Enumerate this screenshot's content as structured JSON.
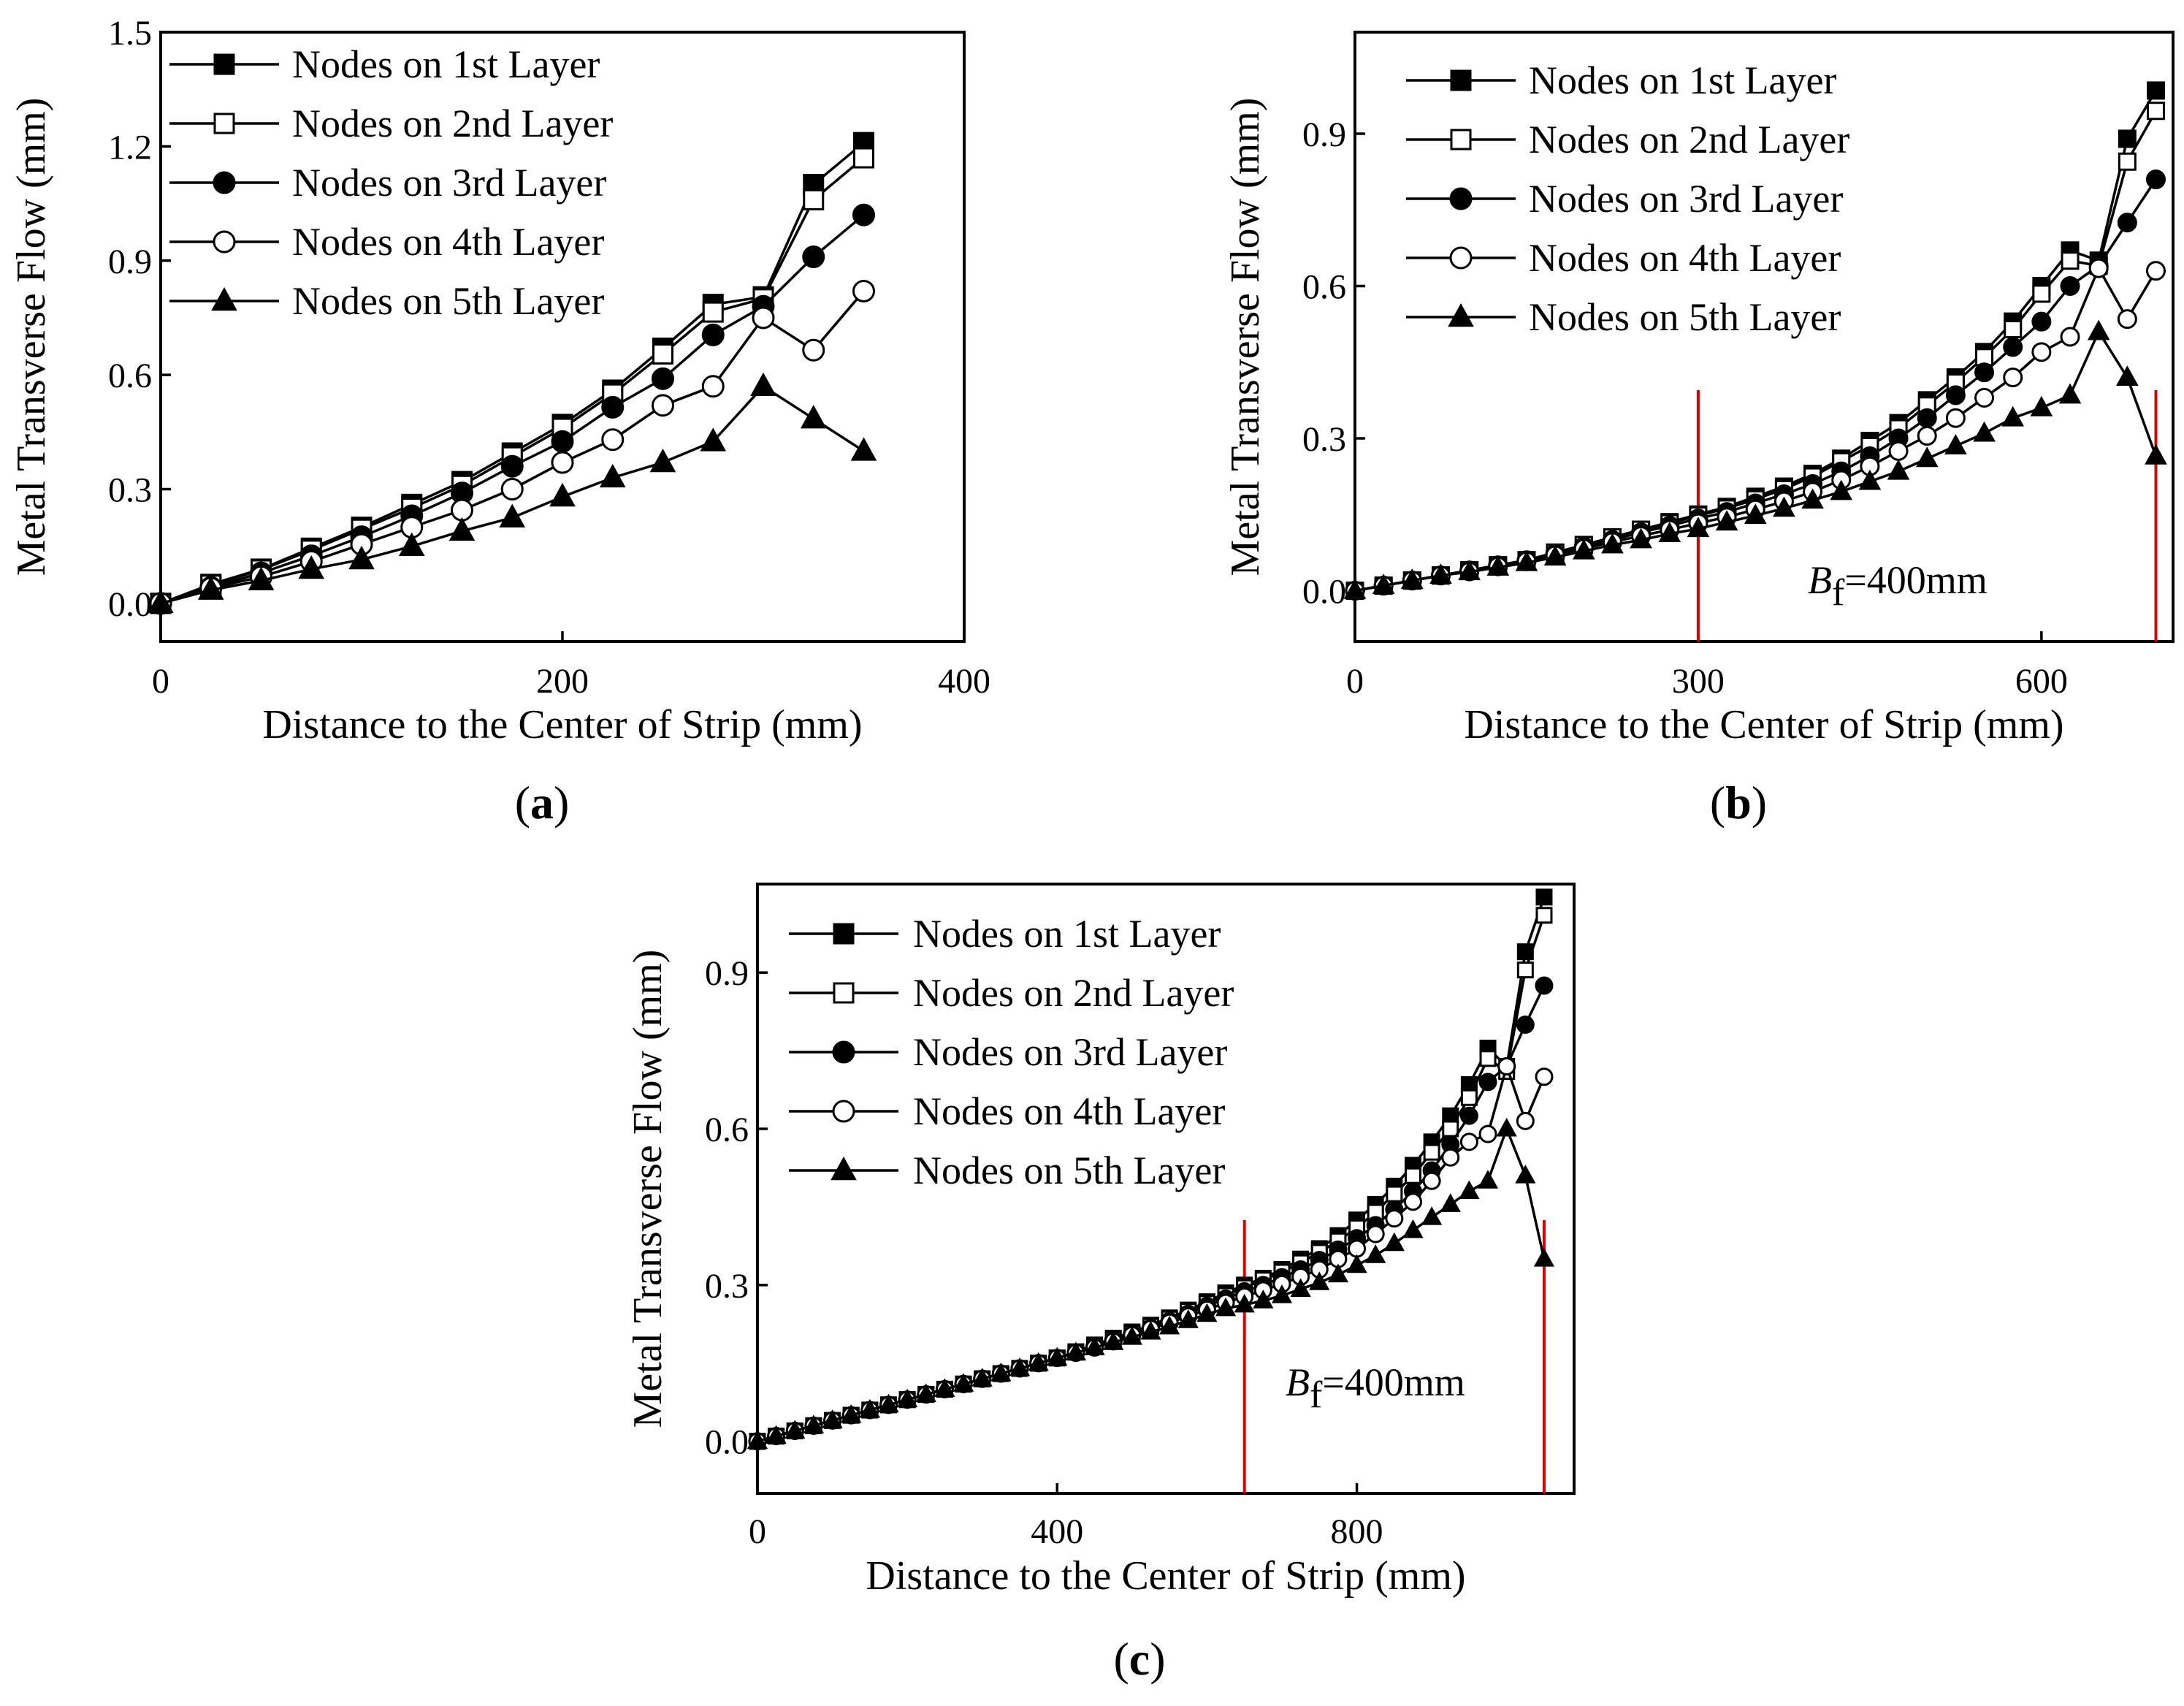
{
  "chart_data": [
    {
      "panel": "a",
      "type": "line",
      "xlabel": "Distance to the Center of Strip (mm)",
      "ylabel": "Metal Transverse Flow (mm)",
      "xlim": [
        0,
        400
      ],
      "ylim": [
        -0.1,
        1.5
      ],
      "xticks": [
        0,
        200,
        400
      ],
      "yticks": [
        0.0,
        0.3,
        0.6,
        0.9,
        1.2,
        1.5
      ],
      "ytick_labels": [
        "0.0",
        "0.3",
        "0.6",
        "0.9",
        "1.2",
        "1.5"
      ],
      "legend_position": "top-left",
      "x": [
        0,
        25,
        50,
        75,
        100,
        125,
        150,
        175,
        200,
        225,
        250,
        275,
        300,
        325,
        350
      ],
      "series": [
        {
          "name": "Nodes on 1st Layer",
          "marker": "square-filled",
          "values": [
            0.0,
            0.05,
            0.09,
            0.145,
            0.2,
            0.26,
            0.32,
            0.395,
            0.47,
            0.56,
            0.67,
            0.785,
            0.805,
            1.1,
            1.21
          ]
        },
        {
          "name": "Nodes on 2nd Layer",
          "marker": "square-open",
          "values": [
            0.0,
            0.048,
            0.088,
            0.14,
            0.195,
            0.25,
            0.31,
            0.385,
            0.46,
            0.55,
            0.655,
            0.765,
            0.8,
            1.06,
            1.17
          ]
        },
        {
          "name": "Nodes on 3rd Layer",
          "marker": "circle-filled",
          "values": [
            0.0,
            0.042,
            0.08,
            0.125,
            0.175,
            0.23,
            0.29,
            0.36,
            0.425,
            0.515,
            0.59,
            0.705,
            0.78,
            0.91,
            1.02
          ]
        },
        {
          "name": "Nodes on 4th Layer",
          "marker": "circle-open",
          "values": [
            0.0,
            0.04,
            0.07,
            0.11,
            0.155,
            0.2,
            0.245,
            0.3,
            0.37,
            0.43,
            0.52,
            0.57,
            0.75,
            0.665,
            0.82
          ]
        },
        {
          "name": "Nodes on 5th Layer",
          "marker": "triangle-filled",
          "values": [
            0.0,
            0.035,
            0.06,
            0.09,
            0.115,
            0.15,
            0.19,
            0.225,
            0.28,
            0.33,
            0.37,
            0.425,
            0.57,
            0.485,
            0.4
          ]
        }
      ]
    },
    {
      "panel": "b",
      "type": "line",
      "xlabel": "Distance to the Center of Strip (mm)",
      "ylabel": "Metal Transverse Flow (mm)",
      "xlim": [
        0,
        715
      ],
      "ylim": [
        -0.1,
        1.1
      ],
      "xticks": [
        0,
        300,
        600
      ],
      "yticks": [
        0.0,
        0.3,
        0.6,
        0.9
      ],
      "ytick_labels": [
        "0.0",
        "0.3",
        "0.6",
        "0.9"
      ],
      "legend_position": "top-left",
      "annotation": {
        "symbol": "B",
        "subscript": "f",
        "text": "=400mm"
      },
      "reference_lines_x": [
        300,
        700
      ],
      "x": [
        0,
        25,
        50,
        75,
        100,
        125,
        150,
        175,
        200,
        225,
        250,
        275,
        300,
        325,
        350,
        375,
        400,
        425,
        450,
        475,
        500,
        525,
        550,
        575,
        600,
        625,
        650,
        675,
        700
      ],
      "series": [
        {
          "name": "Nodes on 1st Layer",
          "marker": "square-filled",
          "values": [
            0.0,
            0.01,
            0.02,
            0.03,
            0.04,
            0.05,
            0.06,
            0.075,
            0.09,
            0.105,
            0.12,
            0.135,
            0.15,
            0.165,
            0.185,
            0.205,
            0.23,
            0.26,
            0.295,
            0.33,
            0.375,
            0.42,
            0.47,
            0.53,
            0.6,
            0.67,
            0.65,
            0.89,
            0.985
          ]
        },
        {
          "name": "Nodes on 2nd Layer",
          "marker": "square-open",
          "values": [
            0.0,
            0.01,
            0.02,
            0.03,
            0.04,
            0.05,
            0.06,
            0.075,
            0.09,
            0.105,
            0.12,
            0.133,
            0.148,
            0.162,
            0.18,
            0.2,
            0.225,
            0.255,
            0.285,
            0.32,
            0.365,
            0.41,
            0.46,
            0.515,
            0.585,
            0.65,
            0.64,
            0.845,
            0.945
          ]
        },
        {
          "name": "Nodes on 3rd Layer",
          "marker": "circle-filled",
          "values": [
            0.0,
            0.01,
            0.02,
            0.03,
            0.04,
            0.05,
            0.06,
            0.073,
            0.087,
            0.1,
            0.115,
            0.128,
            0.142,
            0.155,
            0.172,
            0.19,
            0.21,
            0.235,
            0.265,
            0.3,
            0.34,
            0.385,
            0.43,
            0.48,
            0.53,
            0.6,
            0.64,
            0.725,
            0.81
          ]
        },
        {
          "name": "Nodes on 4th Layer",
          "marker": "circle-open",
          "values": [
            0.0,
            0.01,
            0.02,
            0.03,
            0.038,
            0.048,
            0.058,
            0.07,
            0.083,
            0.096,
            0.108,
            0.12,
            0.133,
            0.145,
            0.16,
            0.176,
            0.195,
            0.218,
            0.245,
            0.275,
            0.305,
            0.34,
            0.38,
            0.42,
            0.47,
            0.5,
            0.635,
            0.535,
            0.63
          ]
        },
        {
          "name": "Nodes on 5th Layer",
          "marker": "triangle-filled",
          "values": [
            0.0,
            0.01,
            0.02,
            0.03,
            0.037,
            0.046,
            0.055,
            0.066,
            0.078,
            0.09,
            0.1,
            0.112,
            0.122,
            0.135,
            0.148,
            0.162,
            0.178,
            0.195,
            0.215,
            0.235,
            0.26,
            0.285,
            0.31,
            0.34,
            0.36,
            0.385,
            0.51,
            0.42,
            0.265
          ]
        }
      ]
    },
    {
      "panel": "c",
      "type": "line",
      "xlabel": "Distance to the Center of Strip (mm)",
      "ylabel": "Metal Transverse Flow (mm)",
      "xlim": [
        0,
        1090
      ],
      "ylim": [
        -0.1,
        1.07
      ],
      "xticks": [
        0,
        400,
        800
      ],
      "yticks": [
        0.0,
        0.3,
        0.6,
        0.9
      ],
      "ytick_labels": [
        "0.0",
        "0.3",
        "0.6",
        "0.9"
      ],
      "legend_position": "top-left",
      "annotation": {
        "symbol": "B",
        "subscript": "f",
        "text": "=400mm"
      },
      "reference_lines_x": [
        650,
        1050
      ],
      "x": [
        0,
        25,
        50,
        75,
        100,
        125,
        150,
        175,
        200,
        225,
        250,
        275,
        300,
        325,
        350,
        375,
        400,
        425,
        450,
        475,
        500,
        525,
        550,
        575,
        600,
        625,
        650,
        675,
        700,
        725,
        750,
        775,
        800,
        825,
        850,
        875,
        900,
        925,
        950,
        975,
        1000,
        1025,
        1050
      ],
      "series": [
        {
          "name": "Nodes on 1st Layer",
          "marker": "square-filled",
          "values": [
            0.0,
            0.01,
            0.02,
            0.03,
            0.04,
            0.05,
            0.06,
            0.07,
            0.08,
            0.09,
            0.1,
            0.11,
            0.12,
            0.13,
            0.14,
            0.15,
            0.16,
            0.172,
            0.185,
            0.198,
            0.21,
            0.223,
            0.237,
            0.252,
            0.268,
            0.285,
            0.3,
            0.313,
            0.33,
            0.35,
            0.37,
            0.395,
            0.425,
            0.455,
            0.49,
            0.53,
            0.575,
            0.625,
            0.685,
            0.755,
            0.72,
            0.94,
            1.045
          ]
        },
        {
          "name": "Nodes on 2nd Layer",
          "marker": "square-open",
          "values": [
            0.0,
            0.01,
            0.02,
            0.03,
            0.04,
            0.05,
            0.06,
            0.07,
            0.08,
            0.09,
            0.1,
            0.11,
            0.12,
            0.13,
            0.14,
            0.15,
            0.16,
            0.171,
            0.183,
            0.196,
            0.208,
            0.221,
            0.235,
            0.25,
            0.265,
            0.28,
            0.295,
            0.31,
            0.325,
            0.343,
            0.363,
            0.385,
            0.41,
            0.44,
            0.475,
            0.51,
            0.555,
            0.6,
            0.66,
            0.735,
            0.71,
            0.905,
            1.01
          ]
        },
        {
          "name": "Nodes on 3rd Layer",
          "marker": "circle-filled",
          "values": [
            0.0,
            0.01,
            0.02,
            0.03,
            0.04,
            0.05,
            0.06,
            0.07,
            0.08,
            0.09,
            0.1,
            0.11,
            0.12,
            0.13,
            0.14,
            0.15,
            0.16,
            0.17,
            0.182,
            0.194,
            0.206,
            0.218,
            0.231,
            0.245,
            0.26,
            0.274,
            0.288,
            0.3,
            0.315,
            0.33,
            0.348,
            0.368,
            0.39,
            0.415,
            0.445,
            0.48,
            0.52,
            0.57,
            0.625,
            0.69,
            0.72,
            0.8,
            0.875
          ]
        },
        {
          "name": "Nodes on 4th Layer",
          "marker": "circle-open",
          "values": [
            0.0,
            0.01,
            0.02,
            0.03,
            0.04,
            0.05,
            0.06,
            0.07,
            0.08,
            0.09,
            0.1,
            0.11,
            0.12,
            0.13,
            0.14,
            0.15,
            0.16,
            0.17,
            0.18,
            0.192,
            0.204,
            0.216,
            0.228,
            0.24,
            0.253,
            0.266,
            0.278,
            0.29,
            0.302,
            0.316,
            0.33,
            0.35,
            0.37,
            0.398,
            0.428,
            0.46,
            0.5,
            0.545,
            0.575,
            0.59,
            0.72,
            0.615,
            0.7
          ]
        },
        {
          "name": "Nodes on 5th Layer",
          "marker": "triangle-filled",
          "values": [
            0.0,
            0.01,
            0.02,
            0.03,
            0.04,
            0.05,
            0.06,
            0.07,
            0.08,
            0.09,
            0.1,
            0.11,
            0.12,
            0.13,
            0.14,
            0.15,
            0.16,
            0.17,
            0.18,
            0.19,
            0.2,
            0.21,
            0.22,
            0.232,
            0.244,
            0.255,
            0.262,
            0.27,
            0.28,
            0.292,
            0.305,
            0.32,
            0.338,
            0.357,
            0.38,
            0.405,
            0.43,
            0.455,
            0.48,
            0.5,
            0.6,
            0.51,
            0.35
          ]
        }
      ]
    }
  ],
  "panel_labels": [
    "(a)",
    "(b)",
    "(c)"
  ]
}
